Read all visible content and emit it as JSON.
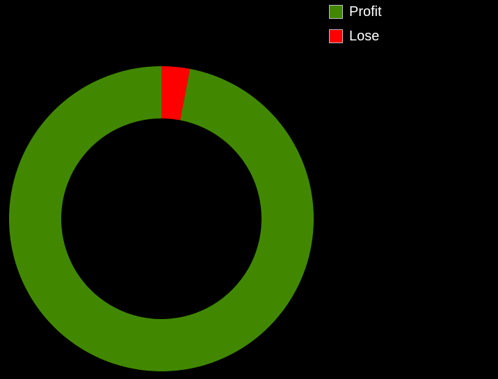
{
  "chart_data": {
    "type": "pie",
    "variant": "donut",
    "title": "",
    "slices": [
      {
        "label": "Profit",
        "value": 97,
        "color": "#418800"
      },
      {
        "label": "Lose",
        "value": 3,
        "color": "#ff0000"
      }
    ],
    "start_angle_deg": 0,
    "direction": "counterclockwise-from-top",
    "legend_position": "top-right",
    "background": "#000000"
  }
}
